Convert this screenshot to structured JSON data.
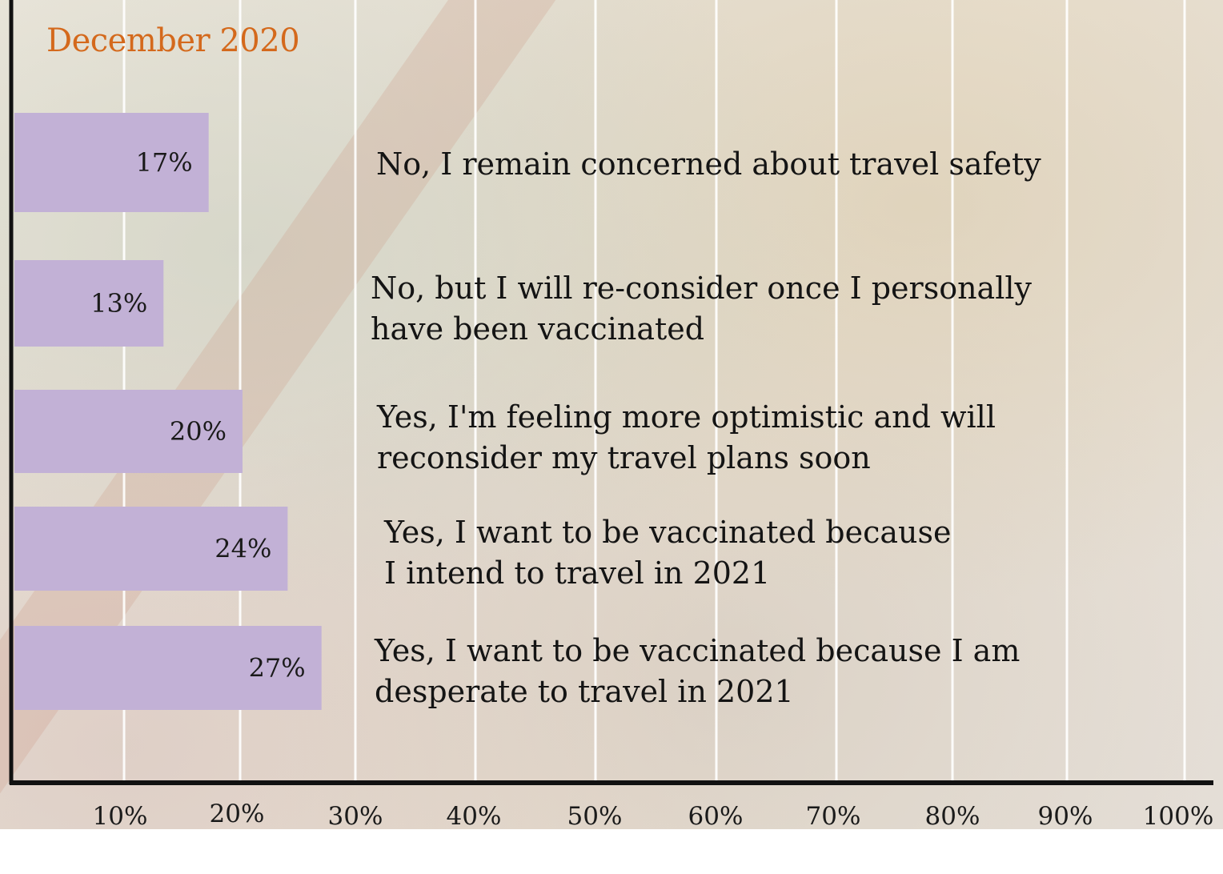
{
  "colors": {
    "bar": "#c2b1d6",
    "title": "#d4691c",
    "axis": "#111111",
    "grid": "#ffffff"
  },
  "chart_data": {
    "type": "bar",
    "orientation": "horizontal",
    "title": "December 2020",
    "categories": [
      "No, I remain concerned about travel safety",
      "No, but I will re-consider once I personally\nhave been vaccinated",
      "Yes, I'm feeling more optimistic and will\nreconsider my travel plans soon",
      "Yes, I want to be vaccinated because\n I intend to travel in 2021",
      "Yes, I want to be vaccinated because I am\ndesperate to travel in 2021"
    ],
    "values": [
      17,
      13,
      20,
      24,
      27
    ],
    "value_labels": [
      "17%",
      "13%",
      "20%",
      "24%",
      "27%"
    ],
    "x_ticks": [
      "10%",
      "20%",
      "30%",
      "40%",
      "50%",
      "60%",
      "70%",
      "80%",
      "90%",
      "100%"
    ],
    "grid": true
  }
}
